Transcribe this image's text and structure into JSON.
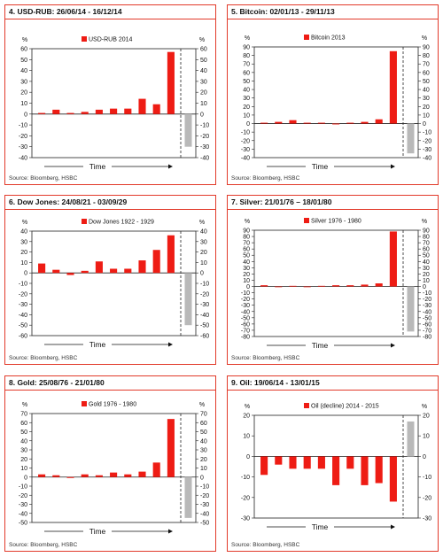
{
  "colors": {
    "bar": "#ee1c14",
    "gray": "#b9b9b9",
    "border": "#e23a2a",
    "axis": "#222222"
  },
  "time_label": "Time",
  "pct_symbol": "%",
  "chart_data": [
    {
      "type": "bar",
      "title": "4. USD-RUB: 26/06/14 - 16/12/14",
      "legend": "USD-RUB 2014",
      "source": "Source: Bloomberg, HSBC",
      "ylim": [
        -40,
        60
      ],
      "ticks": [
        60,
        50,
        40,
        30,
        20,
        10,
        0,
        -10,
        -20,
        -30,
        -40
      ],
      "values": [
        1,
        4,
        1,
        2,
        4,
        5,
        5,
        14,
        9,
        57
      ],
      "gray_value": -30,
      "xlabel": "Time",
      "ylabel": "%"
    },
    {
      "type": "bar",
      "title": "5. Bitcoin: 02/01/13 - 29/11/13",
      "legend": "Bitcoin 2013",
      "source": "Source: Bloomberg, HSBC",
      "ylim": [
        -40,
        90
      ],
      "ticks": [
        90,
        80,
        70,
        60,
        50,
        40,
        30,
        20,
        10,
        0,
        -10,
        -20,
        -30,
        -40
      ],
      "values": [
        1,
        2,
        4,
        1,
        1,
        -1,
        1,
        2,
        5,
        85
      ],
      "gray_value": -35,
      "xlabel": "Time",
      "ylabel": "%"
    },
    {
      "type": "bar",
      "title": "6. Dow Jones: 24/08/21 - 03/09/29",
      "legend": "Dow Jones 1922 - 1929",
      "source": "Source: Bloomberg, HSBC",
      "ylim": [
        -60,
        40
      ],
      "ticks": [
        40,
        30,
        20,
        10,
        0,
        -10,
        -20,
        -30,
        -40,
        -50,
        -60
      ],
      "values": [
        9,
        3,
        -2,
        2,
        11,
        4,
        4,
        12,
        22,
        36
      ],
      "gray_value": -50,
      "xlabel": "Time",
      "ylabel": "%"
    },
    {
      "type": "bar",
      "title": "7. Silver: 21/01/76 – 18/01/80",
      "legend": "Silver 1976 - 1980",
      "source": "Source: Bloomberg, HSBC",
      "ylim": [
        -80,
        90
      ],
      "ticks": [
        90,
        80,
        70,
        60,
        50,
        40,
        30,
        20,
        10,
        0,
        -10,
        -20,
        -30,
        -40,
        -50,
        -60,
        -70,
        -80
      ],
      "values": [
        2,
        -1,
        1,
        -1,
        1,
        2,
        2,
        3,
        5,
        88
      ],
      "gray_value": -72,
      "xlabel": "Time",
      "ylabel": "%"
    },
    {
      "type": "bar",
      "title": "8. Gold: 25/08/76 - 21/01/80",
      "legend": "Gold 1976 - 1980",
      "source": "Source: Bloomberg, HSBC",
      "ylim": [
        -50,
        70
      ],
      "ticks": [
        70,
        60,
        50,
        40,
        30,
        20,
        10,
        0,
        -10,
        -20,
        -30,
        -40,
        -50
      ],
      "values": [
        3,
        2,
        -1,
        3,
        2,
        5,
        3,
        6,
        16,
        64
      ],
      "gray_value": -45,
      "xlabel": "Time",
      "ylabel": "%"
    },
    {
      "type": "bar",
      "title": "9. Oil: 19/06/14 - 13/01/15",
      "legend": "Oil (decline) 2014 - 2015",
      "source": "Source: Bloomberg, HSBC",
      "ylim": [
        -30,
        20
      ],
      "ticks": [
        20,
        10,
        0,
        -10,
        -20,
        -30
      ],
      "values": [
        -9,
        -4,
        -6,
        -6,
        -6,
        -14,
        -6,
        -14,
        -13,
        -22
      ],
      "gray_value": 17,
      "xlabel": "Time",
      "ylabel": "%"
    }
  ]
}
